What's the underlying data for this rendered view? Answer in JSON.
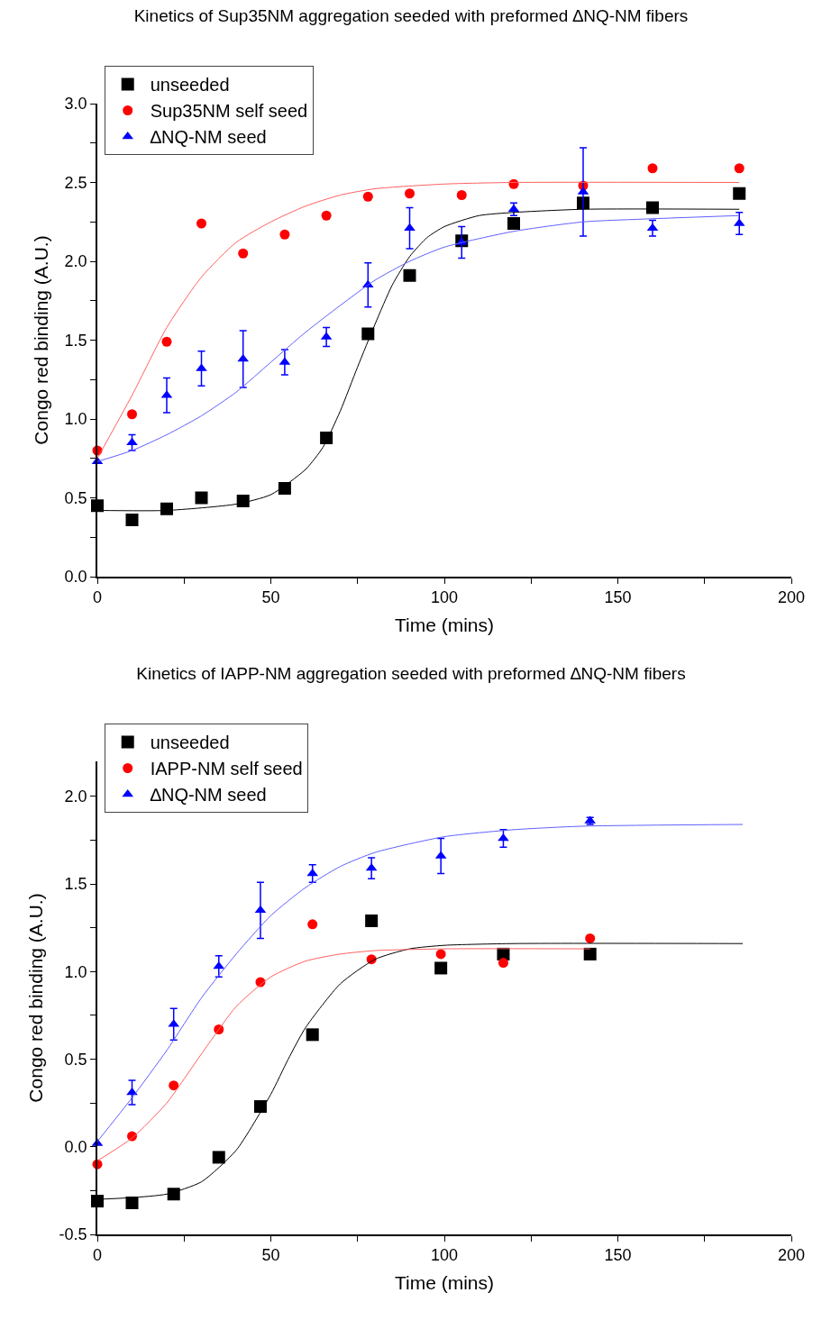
{
  "chart_data": [
    {
      "type": "scatter",
      "title": "Kinetics of Sup35NM aggregation seeded with preformed ∆NQ-NM fibers",
      "xlabel": "Time (mins)",
      "ylabel": "Congo red binding (A.U.)",
      "xlim": [
        0,
        200
      ],
      "xticks": [
        0,
        {
          "value": 25,
          "label": null
        },
        50,
        {
          "value": 75,
          "label": null
        },
        100,
        {
          "value": 125,
          "label": null
        },
        150,
        {
          "value": 175,
          "label": null
        },
        200
      ],
      "ylim": [
        0,
        3.0
      ],
      "yticks": [
        "0.0",
        {
          "value": 0.25,
          "label": null
        },
        {
          "value": 0.5,
          "label": "0.5"
        },
        {
          "value": 0.75,
          "label": null
        },
        {
          "value": 1,
          "label": "1.0"
        },
        {
          "value": 1.25,
          "label": null
        },
        {
          "value": 1.5,
          "label": "1.5"
        },
        {
          "value": 1.75,
          "label": null
        },
        {
          "value": 2,
          "label": "2.0"
        },
        {
          "value": 2.25,
          "label": null
        },
        {
          "value": 2.5,
          "label": "2.5"
        },
        {
          "value": 2.75,
          "label": null
        },
        {
          "value": 3,
          "label": "3.0"
        }
      ],
      "grid": false,
      "legend": "top left",
      "series": [
        {
          "name": "unseeded",
          "color": "#000000",
          "marker": "square",
          "x": [
            0,
            10,
            20,
            30,
            42,
            54,
            66,
            78,
            90,
            105,
            120,
            140,
            160,
            185
          ],
          "values": [
            0.45,
            0.36,
            0.43,
            0.5,
            0.48,
            0.56,
            0.88,
            1.54,
            1.91,
            2.13,
            2.24,
            2.37,
            2.34,
            2.43
          ]
        },
        {
          "name": "Sup35NM self seed",
          "color": "#ff0000",
          "marker": "circle",
          "x": [
            0,
            10,
            20,
            30,
            42,
            54,
            66,
            78,
            90,
            105,
            120,
            140,
            160,
            185
          ],
          "values": [
            0.8,
            1.03,
            1.49,
            2.24,
            2.05,
            2.17,
            2.29,
            2.41,
            2.43,
            2.42,
            2.49,
            2.48,
            2.59,
            2.59
          ]
        },
        {
          "name": "∆NQ-NM seed",
          "color": "#0000ff",
          "marker": "triangle",
          "x": [
            0,
            10,
            20,
            30,
            42,
            54,
            66,
            78,
            90,
            105,
            120,
            140,
            160,
            185
          ],
          "values": [
            0.73,
            0.85,
            1.15,
            1.32,
            1.38,
            1.36,
            1.52,
            1.85,
            2.21,
            2.12,
            2.33,
            2.44,
            2.21,
            2.24
          ],
          "errors": [
            null,
            0.05,
            0.11,
            0.11,
            0.18,
            0.08,
            0.06,
            0.14,
            0.13,
            0.1,
            0.04,
            0.28,
            0.05,
            0.07
          ]
        },
        {
          "type": "line",
          "color": "#000000",
          "x": [
            0,
            20,
            40,
            50,
            60,
            65,
            70,
            75,
            80,
            85,
            90,
            95,
            100,
            110,
            120,
            140,
            185
          ],
          "values": [
            0.42,
            0.42,
            0.46,
            0.52,
            0.68,
            0.82,
            1.05,
            1.33,
            1.6,
            1.85,
            2.03,
            2.15,
            2.22,
            2.29,
            2.31,
            2.33,
            2.33
          ]
        },
        {
          "type": "line",
          "color": "#ff6060",
          "x": [
            0,
            10,
            20,
            30,
            40,
            50,
            60,
            70,
            80,
            100,
            120,
            185
          ],
          "values": [
            0.75,
            1.15,
            1.58,
            1.9,
            2.12,
            2.25,
            2.35,
            2.42,
            2.46,
            2.49,
            2.5,
            2.5
          ]
        },
        {
          "type": "line",
          "color": "#6060ff",
          "x": [
            0,
            10,
            20,
            30,
            40,
            50,
            60,
            70,
            80,
            90,
            100,
            120,
            140,
            160,
            185
          ],
          "values": [
            0.73,
            0.8,
            0.9,
            1.02,
            1.17,
            1.36,
            1.55,
            1.72,
            1.88,
            2.0,
            2.09,
            2.19,
            2.25,
            2.27,
            2.29
          ]
        }
      ]
    },
    {
      "type": "scatter",
      "title": "Kinetics of IAPP-NM aggregation seeded with preformed ∆NQ-NM fibers",
      "xlabel": "Time (mins)",
      "ylabel": "Congo red binding (A.U.)",
      "xlim": [
        0,
        200
      ],
      "xticks": [
        0,
        {
          "value": 25,
          "label": null
        },
        50,
        {
          "value": 75,
          "label": null
        },
        100,
        {
          "value": 125,
          "label": null
        },
        150,
        {
          "value": 175,
          "label": null
        },
        200
      ],
      "ylim": [
        -0.5,
        2.2
      ],
      "yticks": [
        -0.5,
        {
          "value": -0.25,
          "label": null
        },
        {
          "value": 0,
          "label": "0.0"
        },
        {
          "value": 0.25,
          "label": null
        },
        {
          "value": 0.5,
          "label": "0.5"
        },
        {
          "value": 0.75,
          "label": null
        },
        {
          "value": 1,
          "label": "1.0"
        },
        {
          "value": 1.25,
          "label": null
        },
        {
          "value": 1.5,
          "label": "1.5"
        },
        {
          "value": 1.75,
          "label": null
        },
        {
          "value": 2,
          "label": "2.0"
        }
      ],
      "grid": false,
      "legend": "top left",
      "series": [
        {
          "name": "unseeded",
          "color": "#000000",
          "marker": "square",
          "x": [
            0,
            10,
            22,
            35,
            47,
            62,
            79,
            99,
            117,
            142
          ],
          "values": [
            -0.31,
            -0.32,
            -0.27,
            -0.06,
            0.23,
            0.64,
            1.29,
            1.02,
            1.1,
            1.1
          ]
        },
        {
          "name": "IAPP-NM self seed",
          "color": "#ff0000",
          "marker": "circle",
          "x": [
            0,
            10,
            22,
            35,
            47,
            62,
            79,
            99,
            117,
            142
          ],
          "values": [
            -0.1,
            0.06,
            0.35,
            0.67,
            0.94,
            1.27,
            1.07,
            1.1,
            1.05,
            1.19
          ]
        },
        {
          "name": "∆NQ-NM seed",
          "color": "#0000ff",
          "marker": "triangle",
          "x": [
            0,
            10,
            22,
            35,
            47,
            62,
            79,
            99,
            117,
            142
          ],
          "values": [
            0.02,
            0.31,
            0.7,
            1.03,
            1.35,
            1.56,
            1.59,
            1.66,
            1.76,
            1.86
          ],
          "errors": [
            null,
            0.07,
            0.09,
            0.06,
            0.16,
            0.05,
            0.06,
            0.1,
            0.05,
            0.02
          ]
        },
        {
          "type": "line",
          "color": "#000000",
          "x": [
            0,
            10,
            20,
            30,
            40,
            50,
            55,
            60,
            70,
            80,
            90,
            100,
            120,
            186
          ],
          "values": [
            -0.3,
            -0.29,
            -0.27,
            -0.2,
            -0.02,
            0.3,
            0.5,
            0.68,
            0.93,
            1.07,
            1.13,
            1.15,
            1.16,
            1.16
          ]
        },
        {
          "type": "line",
          "color": "#ff6060",
          "x": [
            0,
            10,
            20,
            30,
            40,
            50,
            60,
            70,
            80,
            100,
            142
          ],
          "values": [
            -0.08,
            0.05,
            0.25,
            0.53,
            0.8,
            0.97,
            1.06,
            1.1,
            1.12,
            1.13,
            1.13
          ]
        },
        {
          "type": "line",
          "color": "#6060ff",
          "x": [
            0,
            10,
            20,
            30,
            40,
            50,
            60,
            70,
            80,
            100,
            120,
            140,
            186
          ],
          "values": [
            0.03,
            0.28,
            0.55,
            0.85,
            1.1,
            1.32,
            1.48,
            1.6,
            1.68,
            1.77,
            1.81,
            1.83,
            1.84
          ]
        }
      ]
    }
  ]
}
